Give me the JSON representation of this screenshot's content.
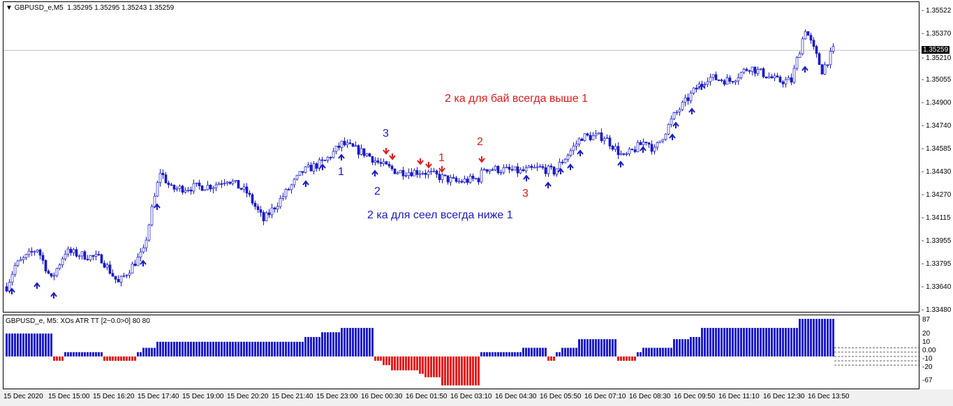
{
  "header": {
    "symbol": "GBPUSD_e,M5",
    "ohlc": "1.35295 1.35295 1.35243 1.35259"
  },
  "indicator": {
    "title": "GBPUSD_e, M5: XOs ATR TT [2~0.0>0]  80 80",
    "levels": [
      "87",
      "20",
      "10",
      "0.00",
      "-10",
      "-20",
      "-67"
    ],
    "segments": [
      [
        0,
        16,
        53
      ],
      [
        17,
        20,
        -10
      ],
      [
        21,
        34,
        10
      ],
      [
        35,
        46,
        -10
      ],
      [
        47,
        48,
        10
      ],
      [
        49,
        53,
        20
      ],
      [
        54,
        106,
        34
      ],
      [
        107,
        112,
        45
      ],
      [
        113,
        119,
        56
      ],
      [
        120,
        131,
        66
      ],
      [
        132,
        134,
        -10
      ],
      [
        135,
        137,
        -20
      ],
      [
        138,
        147,
        -32
      ],
      [
        148,
        149,
        -40
      ],
      [
        150,
        155,
        -48
      ],
      [
        156,
        169,
        -67
      ],
      [
        170,
        184,
        10
      ],
      [
        185,
        193,
        20
      ],
      [
        194,
        196,
        -10
      ],
      [
        197,
        198,
        10
      ],
      [
        199,
        204,
        20
      ],
      [
        205,
        218,
        40
      ],
      [
        219,
        225,
        -10
      ],
      [
        226,
        227,
        10
      ],
      [
        228,
        238,
        20
      ],
      [
        239,
        244,
        40
      ],
      [
        245,
        248,
        45
      ],
      [
        249,
        283,
        66
      ],
      [
        284,
        296,
        87
      ]
    ],
    "colors": {
      "up": "#1a1acc",
      "down": "#e61919"
    }
  },
  "price_axis": {
    "labels": [
      "1.35522",
      "1.35370",
      "1.35210",
      "1.35055",
      "1.34900",
      "1.34740",
      "1.34585",
      "1.34430",
      "1.34270",
      "1.34115",
      "1.33955",
      "1.33795",
      "1.33640",
      "1.33480"
    ],
    "current": "1.35259",
    "range": [
      1.3348,
      1.35522
    ]
  },
  "time_axis": [
    "15 Dec 2020",
    "15 Dec 15:00",
    "15 Dec 16:20",
    "15 Dec 17:40",
    "15 Dec 19:00",
    "15 Dec 20:20",
    "15 Dec 21:40",
    "15 Dec 23:00",
    "16 Dec 00:30",
    "16 Dec 01:50",
    "16 Dec 03:10",
    "16 Dec 04:30",
    "16 Dec 05:50",
    "16 Dec 07:10",
    "16 Dec 08:30",
    "16 Dec 09:50",
    "16 Dec 11:10",
    "16 Dec 12:30",
    "16 Dec 13:50"
  ],
  "price_path": [
    [
      0,
      1.33647
    ],
    [
      3,
      1.33789
    ],
    [
      11,
      1.33908
    ],
    [
      16,
      1.33694
    ],
    [
      21,
      1.33885
    ],
    [
      34,
      1.33837
    ],
    [
      40,
      1.3367
    ],
    [
      49,
      1.33885
    ],
    [
      52,
      1.3417
    ],
    [
      55,
      1.34432
    ],
    [
      59,
      1.34313
    ],
    [
      74,
      1.34337
    ],
    [
      79,
      1.34384
    ],
    [
      86,
      1.34289
    ],
    [
      92,
      1.34099
    ],
    [
      99,
      1.34265
    ],
    [
      106,
      1.34432
    ],
    [
      114,
      1.34503
    ],
    [
      120,
      1.34622
    ],
    [
      129,
      1.34551
    ],
    [
      134,
      1.3448
    ],
    [
      140,
      1.34432
    ],
    [
      149,
      1.34432
    ],
    [
      161,
      1.34361
    ],
    [
      169,
      1.34384
    ],
    [
      171,
      1.34456
    ],
    [
      184,
      1.34432
    ],
    [
      191,
      1.34456
    ],
    [
      196,
      1.34432
    ],
    [
      206,
      1.3467
    ],
    [
      214,
      1.3467
    ],
    [
      221,
      1.34527
    ],
    [
      229,
      1.34646
    ],
    [
      232,
      1.34575
    ],
    [
      239,
      1.34813
    ],
    [
      246,
      1.34979
    ],
    [
      251,
      1.35075
    ],
    [
      259,
      1.35051
    ],
    [
      266,
      1.35146
    ],
    [
      276,
      1.35051
    ],
    [
      281,
      1.35051
    ],
    [
      286,
      1.35408
    ],
    [
      290,
      1.35217
    ],
    [
      292,
      1.35122
    ],
    [
      296,
      1.35259
    ]
  ],
  "annotations": {
    "buy_note": "2 ка для бай всегда выше 1",
    "sell_note": "2 ка для сеел всегда ниже 1",
    "blue3": "3",
    "blue1": "1",
    "blue2": "2",
    "red1": "1",
    "red2": "2",
    "red3": "3"
  },
  "signals": {
    "up_arrows": [
      "up-arrow"
    ],
    "down_arrows": [
      "down-arrow"
    ]
  }
}
